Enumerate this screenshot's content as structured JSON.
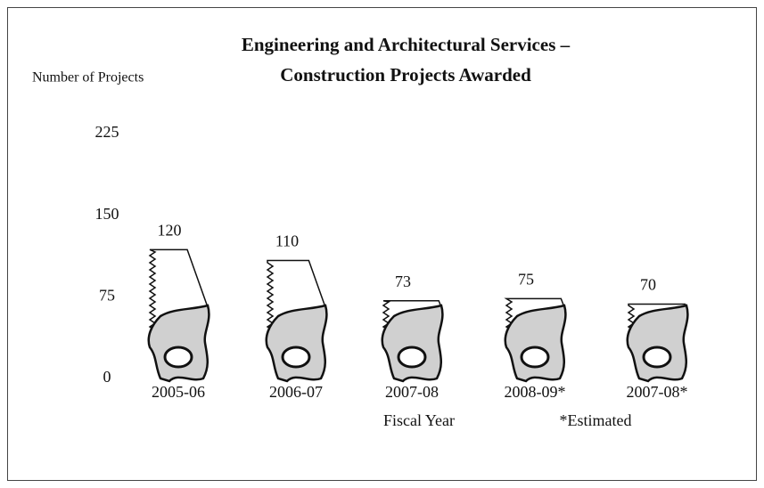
{
  "chart_data": {
    "type": "pictograph",
    "title": [
      "Engineering and Architectural Services –",
      "Construction Projects Awarded"
    ],
    "y_label": "Number of Projects",
    "x_label": "Fiscal Year",
    "annotation": "*Estimated",
    "categories": [
      "2005-06",
      "2006-07",
      "2007-08",
      "2008-09*",
      "2007-08*"
    ],
    "values": [
      120,
      110,
      73,
      75,
      70
    ],
    "ylim": [
      0,
      225
    ],
    "yticks": [
      0,
      75,
      150,
      225
    ],
    "color": "#d0d0d0"
  }
}
